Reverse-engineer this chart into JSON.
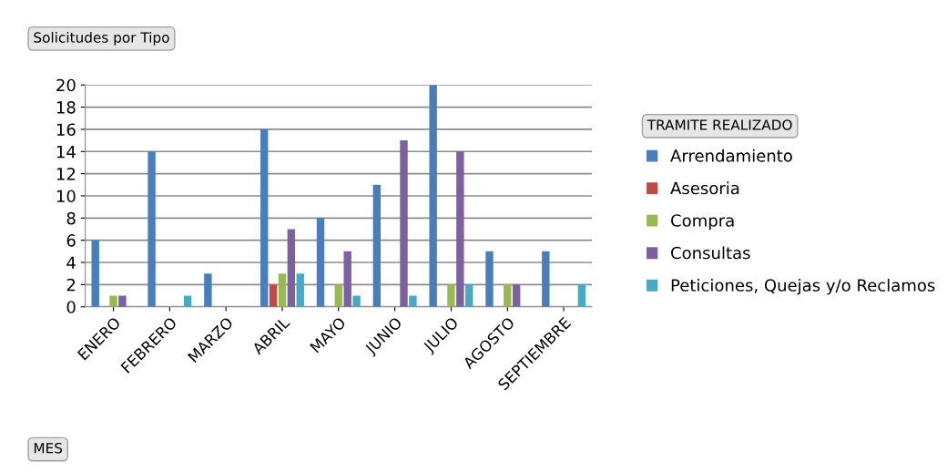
{
  "chart_data": {
    "type": "bar",
    "title": "Solicitudes por Tipo",
    "xlabel": "MES",
    "legend_title": "TRAMITE REALIZADO",
    "categories": [
      "ENERO",
      "FEBRERO",
      "MARZO",
      "ABRIL",
      "MAYO",
      "JUNIO",
      "JULIO",
      "AGOSTO",
      "SEPTIEMBRE"
    ],
    "series": [
      {
        "name": "Arrendamiento",
        "color": "#4a7ebb",
        "values": [
          6,
          14,
          3,
          16,
          8,
          11,
          20,
          5,
          5
        ]
      },
      {
        "name": "Asesoria",
        "color": "#be4b48",
        "values": [
          null,
          null,
          null,
          2,
          null,
          null,
          null,
          null,
          null
        ]
      },
      {
        "name": "Compra",
        "color": "#98b954",
        "values": [
          1,
          null,
          null,
          3,
          2,
          null,
          2,
          2,
          null
        ]
      },
      {
        "name": "Consultas",
        "color": "#7d60a0",
        "values": [
          1,
          null,
          null,
          7,
          5,
          15,
          14,
          2,
          null
        ]
      },
      {
        "name": "Peticiones, Quejas y/o Reclamos",
        "color": "#46aac5",
        "values": [
          null,
          1,
          null,
          3,
          1,
          1,
          2,
          null,
          2
        ]
      }
    ],
    "ylim": [
      0,
      20
    ],
    "yticks": [
      0,
      2,
      4,
      6,
      8,
      10,
      12,
      14,
      16,
      18,
      20
    ],
    "grid": "y",
    "legend": "right"
  }
}
